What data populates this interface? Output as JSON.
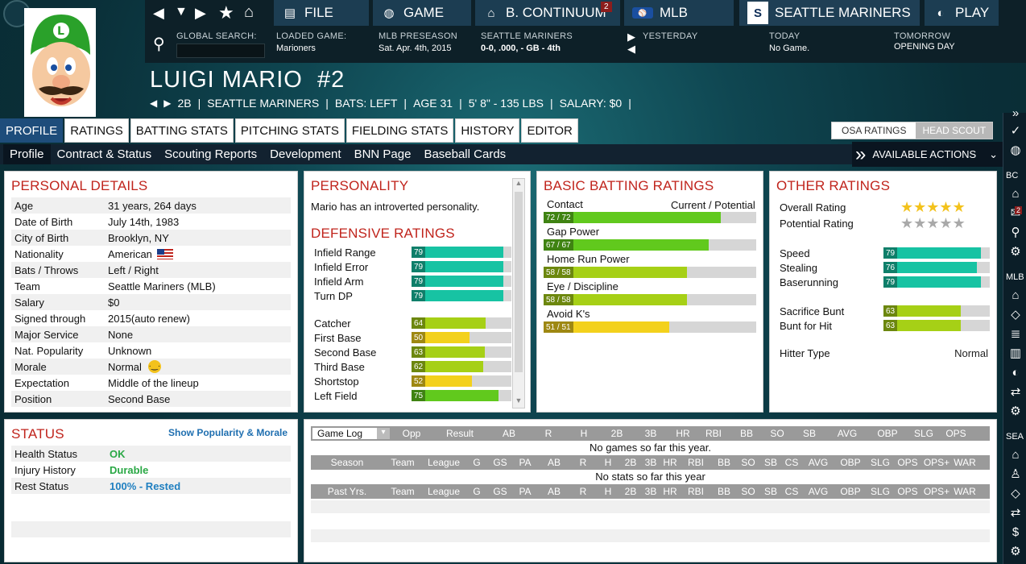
{
  "topnav": {
    "file": "FILE",
    "game": "GAME",
    "continuum": "B. CONTINUUM",
    "continuum_badge": "2",
    "mlb": "MLB",
    "team": "SEATTLE MARINERS",
    "play": "PLAY"
  },
  "info": {
    "search_label": "GLOBAL SEARCH:",
    "loaded_label": "LOADED GAME:",
    "loaded_val": "Marioners",
    "season_label": "MLB PRESEASON",
    "season_val": "Sat. Apr. 4th, 2015",
    "team_label": "SEATTLE MARINERS",
    "team_val": "0-0, .000, - GB - 4th",
    "yesterday_label": "YESTERDAY",
    "today_label": "TODAY",
    "today_val": "No Game.",
    "tomorrow_label": "TOMORROW",
    "tomorrow_val": "OPENING DAY"
  },
  "player": {
    "name": "LUIGI MARIO",
    "number": "#2",
    "pos": "2B",
    "team": "SEATTLE MARINERS",
    "bats": "BATS: LEFT",
    "age": "AGE 31",
    "size": "5' 8\" - 135 LBS",
    "salary": "SALARY: $0",
    "sep": "|"
  },
  "tabs": [
    "PROFILE",
    "RATINGS",
    "BATTING STATS",
    "PITCHING STATS",
    "FIELDING STATS",
    "HISTORY",
    "EDITOR"
  ],
  "scout_toggle": {
    "osa": "OSA RATINGS",
    "head": "HEAD SCOUT"
  },
  "subnav": [
    "Profile",
    "Contract & Status",
    "Scouting Reports",
    "Development",
    "BNN Page",
    "Baseball Cards"
  ],
  "actions": "AVAILABLE ACTIONS",
  "personal": {
    "title": "PERSONAL DETAILS",
    "rows": [
      [
        "Age",
        "31 years, 264 days"
      ],
      [
        "Date of Birth",
        "July 14th, 1983"
      ],
      [
        "City of Birth",
        "Brooklyn, NY"
      ],
      [
        "Nationality",
        "American"
      ],
      [
        "Bats / Throws",
        "Left / Right"
      ],
      [
        "Team",
        "Seattle Mariners (MLB)"
      ],
      [
        "Salary",
        "$0"
      ],
      [
        "Signed through",
        "2015(auto renew)"
      ],
      [
        "Major Service",
        "None"
      ],
      [
        "Nat. Popularity",
        "Unknown"
      ],
      [
        "Morale",
        "Normal"
      ],
      [
        "Expectation",
        "Middle of the lineup"
      ],
      [
        "Position",
        "Second Base"
      ]
    ]
  },
  "personality": {
    "title": "PERSONALITY",
    "text": "Mario has an introverted personality."
  },
  "defensive": {
    "title": "DEFENSIVE RATINGS",
    "items": [
      {
        "name": "Infield Range",
        "value": 79
      },
      {
        "name": "Infield Error",
        "value": 79
      },
      {
        "name": "Infield Arm",
        "value": 79
      },
      {
        "name": "Turn DP",
        "value": 79
      },
      {
        "name": "Catcher",
        "value": 64
      },
      {
        "name": "First Base",
        "value": 50
      },
      {
        "name": "Second Base",
        "value": 63
      },
      {
        "name": "Third Base",
        "value": 62
      },
      {
        "name": "Shortstop",
        "value": 52
      },
      {
        "name": "Left Field",
        "value": 75
      }
    ]
  },
  "batting": {
    "title": "BASIC BATTING RATINGS",
    "cur_pot": "Current / Potential",
    "items": [
      {
        "name": "Contact",
        "label": "72 / 72",
        "value": 72
      },
      {
        "name": "Gap Power",
        "label": "67 / 67",
        "value": 67
      },
      {
        "name": "Home Run Power",
        "label": "58 / 58",
        "value": 58
      },
      {
        "name": "Eye / Discipline",
        "label": "58 / 58",
        "value": 58
      },
      {
        "name": "Avoid K's",
        "label": "51 / 51",
        "value": 51
      }
    ]
  },
  "other": {
    "title": "OTHER RATINGS",
    "overall": "Overall Rating",
    "potential": "Potential Rating",
    "overall_stars": 5,
    "potential_stars": 0,
    "items": [
      {
        "name": "Speed",
        "value": 79
      },
      {
        "name": "Stealing",
        "value": 76
      },
      {
        "name": "Baserunning",
        "value": 79
      },
      {
        "name": "Sacrifice Bunt",
        "value": 63
      },
      {
        "name": "Bunt for Hit",
        "value": 63
      }
    ],
    "hitter_type_label": "Hitter Type",
    "hitter_type": "Normal"
  },
  "status": {
    "title": "STATUS",
    "link": "Show Popularity & Morale",
    "rows": [
      [
        "Health Status",
        "OK"
      ],
      [
        "Injury History",
        "Durable"
      ],
      [
        "Rest Status",
        "100% - Rested"
      ]
    ]
  },
  "gamelog": {
    "select": "Game Log",
    "cols": [
      "Opp",
      "Result",
      "AB",
      "R",
      "H",
      "2B",
      "3B",
      "HR",
      "RBI",
      "BB",
      "SO",
      "SB",
      "AVG",
      "OBP",
      "SLG",
      "OPS"
    ],
    "msg": "No games so far this year.",
    "season_cols": [
      "Season",
      "Team",
      "League",
      "G",
      "GS",
      "PA",
      "AB",
      "R",
      "H",
      "2B",
      "3B",
      "HR",
      "RBI",
      "BB",
      "SO",
      "SB",
      "CS",
      "AVG",
      "OBP",
      "SLG",
      "OPS",
      "OPS+",
      "WAR"
    ],
    "season_msg": "No stats so far this year",
    "past_cols": [
      "Past Yrs.",
      "Team",
      "League",
      "G",
      "GS",
      "PA",
      "AB",
      "R",
      "H",
      "2B",
      "3B",
      "HR",
      "RBI",
      "BB",
      "SO",
      "SB",
      "CS",
      "AVG",
      "OBP",
      "SLG",
      "OPS",
      "OPS+",
      "WAR"
    ]
  },
  "rightbar": {
    "bc": "BC",
    "mlb": "MLB",
    "sea": "SEA",
    "badge": "2"
  },
  "colors": {
    "teal": "#17c3a3",
    "green": "#61c91d",
    "lime": "#a6d016",
    "yellow": "#f3d11c",
    "red_title": "#c0241c"
  }
}
